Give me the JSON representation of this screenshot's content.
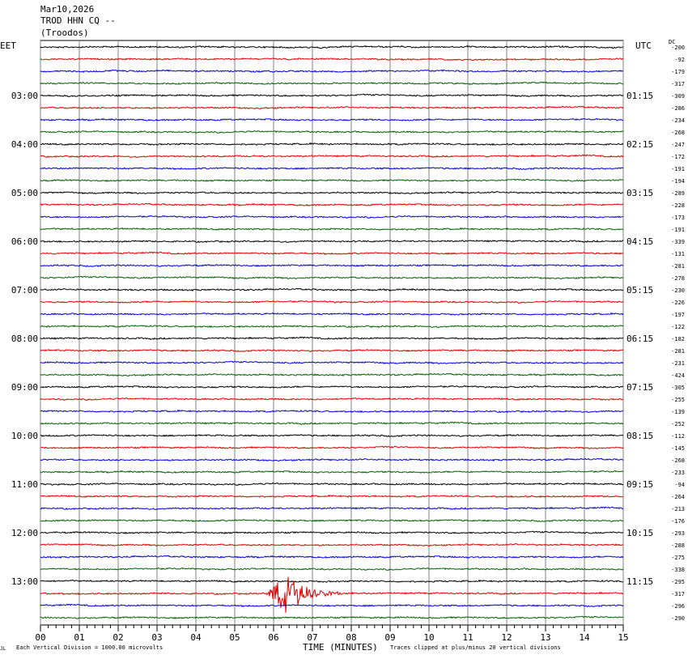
{
  "header": {
    "date": "Mar10,2026",
    "station": "TROD HHN CQ --",
    "location": "(Troodos)"
  },
  "timezones": {
    "left": "EET",
    "right": "UTC"
  },
  "dc_label": "DC",
  "footer": {
    "mark": "JL",
    "left": "Each Vertical Division = 1000.00 microvolts",
    "axis_title": "TIME (MINUTES)",
    "right": "Traces clipped at plus/minus 20 vertical divisions"
  },
  "colors": {
    "cycle": [
      "#000000",
      "#e00000",
      "#0000e0",
      "#006400"
    ],
    "grid": "#808080"
  },
  "chart_data": {
    "type": "line",
    "title": "",
    "xlabel": "TIME (MINUTES)",
    "xlim": [
      0,
      15
    ],
    "x_ticks": [
      "00",
      "01",
      "02",
      "03",
      "04",
      "05",
      "06",
      "07",
      "08",
      "09",
      "10",
      "11",
      "12",
      "13",
      "14",
      "15"
    ],
    "row_minutes": 15,
    "left_hour_labels": [
      "03:00",
      "04:00",
      "05:00",
      "06:00",
      "07:00",
      "08:00",
      "09:00",
      "10:00",
      "11:00",
      "12:00",
      "13:00"
    ],
    "right_hour_labels": [
      "01:15",
      "02:15",
      "03:15",
      "04:15",
      "05:15",
      "06:15",
      "07:15",
      "08:15",
      "09:15",
      "10:15",
      "11:15"
    ],
    "dc_offsets": [
      -200,
      -92,
      -179,
      -317,
      -309,
      -286,
      -234,
      -268,
      -247,
      -172,
      -191,
      -194,
      -289,
      -228,
      -173,
      -191,
      -339,
      -131,
      -281,
      -278,
      -230,
      -226,
      -197,
      -122,
      -182,
      -281,
      -231,
      -424,
      -305,
      -255,
      -139,
      -252,
      -112,
      -145,
      -268,
      -233,
      -94,
      -264,
      -213,
      -176,
      -293,
      -288,
      -275,
      -338,
      -295,
      -317,
      -296,
      -290
    ],
    "event": {
      "row": 45,
      "start_minute": 5.8,
      "peak_minute": 6.3,
      "end_minute": 8.4,
      "peak_amplitude_divisions": 20
    }
  }
}
